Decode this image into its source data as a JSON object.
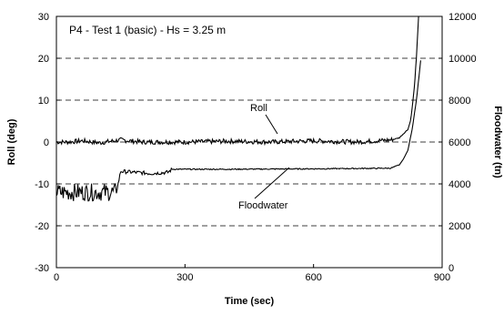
{
  "chart_data": {
    "type": "line",
    "title": "P4 - Test 1 (basic) - Hs = 3.25 m",
    "xlabel": "Time (sec)",
    "ylabel_left": "Roll (deg)",
    "ylabel_right": "Floodwater (tn)",
    "xlim": [
      0,
      900
    ],
    "ylim_left": [
      -30,
      30
    ],
    "ylim_right": [
      0,
      12000
    ],
    "x_ticks": [
      "0",
      "300",
      "600",
      "900"
    ],
    "y_left_ticks": [
      "-30",
      "-20",
      "-10",
      "0",
      "10",
      "20",
      "30"
    ],
    "y_right_ticks": [
      "0",
      "2000",
      "4000",
      "6000",
      "8000",
      "10000",
      "12000"
    ],
    "grid": "dashed horizontal",
    "annotations": [
      "Roll",
      "Floodwater"
    ],
    "series": [
      {
        "name": "Roll",
        "axis": "left",
        "x": [
          0,
          30,
          60,
          100,
          150,
          200,
          300,
          400,
          500,
          600,
          700,
          780,
          800,
          810,
          820,
          826,
          830,
          835,
          840,
          845
        ],
        "y": [
          0,
          0,
          0.3,
          -0.2,
          0.5,
          0,
          0,
          0.2,
          0,
          0.3,
          0,
          0.5,
          1,
          2,
          3,
          5,
          8,
          13,
          20,
          30
        ]
      },
      {
        "name": "Floodwater",
        "axis": "right",
        "x": [
          0,
          60,
          140,
          150,
          220,
          260,
          270,
          400,
          600,
          780,
          800,
          810,
          820,
          830,
          840,
          850
        ],
        "y": [
          3600,
          3600,
          3600,
          4600,
          4500,
          4550,
          4700,
          4700,
          4720,
          4750,
          4900,
          5200,
          5600,
          6600,
          8000,
          9900
        ]
      }
    ]
  }
}
